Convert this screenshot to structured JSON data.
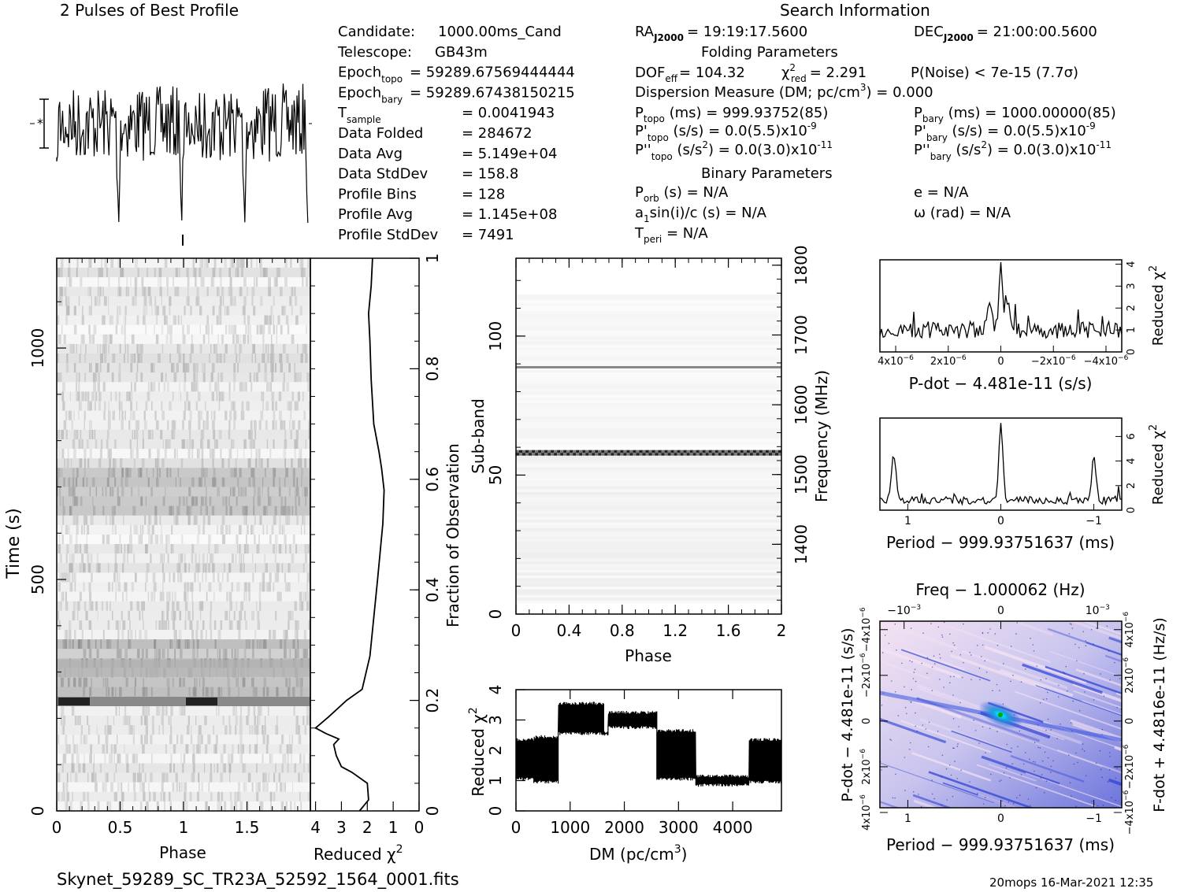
{
  "header": {
    "profile_title": "2 Pulses of Best Profile",
    "search_title": "Search Information",
    "folding_title": "Folding Parameters",
    "binary_title": "Binary Parameters",
    "filename": "Skynet_59289_SC_TR23A_52592_1564_0001.fits",
    "stamp": "20mops 16-Mar-2021 12:35"
  },
  "info_left": [
    {
      "label": "Candidate:",
      "value": "1000.00ms_Cand"
    },
    {
      "label": "Telescope:",
      "value": "GB43m"
    },
    {
      "label": "Epoch",
      "sub": "topo",
      "value": "= 59289.67569444444"
    },
    {
      "label": "Epoch",
      "sub": "bary",
      "value": "= 59289.67438150215"
    },
    {
      "label": "T",
      "sub": "sample",
      "value": "=   0.0041943"
    },
    {
      "label": "Data Folded",
      "value": "=   284672"
    },
    {
      "label": "Data Avg",
      "value": "=   5.149e+04"
    },
    {
      "label": "Data StdDev",
      "value": "=   158.8"
    },
    {
      "label": "Profile Bins",
      "value": "=   128"
    },
    {
      "label": "Profile Avg",
      "value": "=   1.145e+08"
    },
    {
      "label": "Profile StdDev",
      "value": "=   7491"
    }
  ],
  "search_info": {
    "ra": "RA",
    "ra_sub": "J2000",
    "ra_value": "= 19:19:17.5600",
    "dec": "DEC",
    "dec_sub": "J2000",
    "dec_value": "= 21:00:00.5600",
    "dof": "DOF",
    "dof_sub": "eff",
    "dof_value": "= 104.32",
    "chi": "χ",
    "chi_sup": "2",
    "chi_sub": "red",
    "chi_value": "= 2.291",
    "pnoise": "P(Noise) < 7e-15   (7.7σ)",
    "dm": "Dispersion Measure (DM; pc/cm",
    "dm_sup": "3",
    "dm_value": ") = 0.000",
    "ptopo": "P",
    "ptopo_sub": "topo",
    "ptopo_value": " (ms) =  999.93752(85)",
    "pbary": "P",
    "pbary_sub": "bary",
    "pbary_value": " (ms) =  1000.00000(85)",
    "pdtopo": "P'",
    "pdtopo_sub": "topo",
    "pdtopo_value": " (s/s) = 0.0(5.5)x10",
    "pdtopo_exp": "-9",
    "pdbary": "P'",
    "pdbary_sub": "bary",
    "pdbary_value": " (s/s) = 0.0(5.5)x10",
    "pdbary_exp": "-9",
    "pddtopo": "P''",
    "pddtopo_sub": "topo",
    "pddtopo_value": " (s/s",
    "pddtopo_sup": "2",
    "pddtopo_value2": ") = 0.0(3.0)x10",
    "pddtopo_exp": "-11",
    "pddbary": "P''",
    "pddbary_sub": "bary",
    "pddbary_value": " (s/s",
    "pddbary_sup": "2",
    "pddbary_value2": ") = 0.0(3.0)x10",
    "pddbary_exp": "-11",
    "porb": "P",
    "porb_sub": "orb",
    "porb_value": " (s) = N/A",
    "ecc": "e = N/A",
    "a1": "a",
    "a1_sub": "1",
    "a1_value": "sin(i)/c (s) = N/A",
    "omega": "ω (rad) = N/A",
    "tperi": "T",
    "tperi_sub": "peri",
    "tperi_value": " = N/A"
  },
  "chart_data": [
    {
      "type": "line",
      "id": "best_profile",
      "title": "2 Pulses of Best Profile",
      "x_range": [
        0,
        2
      ],
      "bins": 128,
      "note": "noise-like profile, dip near phase 1.0"
    },
    {
      "type": "heatmap",
      "id": "time_phase",
      "xlabel": "Phase",
      "ylabel": "Time (s)",
      "xlim": [
        0,
        2
      ],
      "ylim": [
        0,
        1194
      ],
      "x_ticks": [
        "0",
        "0.5",
        "1",
        "1.5"
      ],
      "y_ticks": [
        "0",
        "500",
        "1000"
      ],
      "right_axis_label": "Fraction of Observation",
      "right_ticks": [
        "0",
        "0.2",
        "0.4",
        "0.6",
        "0.8",
        "1"
      ]
    },
    {
      "type": "line",
      "id": "time_chi2",
      "xlabel": "Reduced χ",
      "xlabel_sup": "2",
      "x_ticks": [
        "4",
        "3",
        "2",
        "1",
        "0"
      ],
      "xlim": [
        4.2,
        0
      ],
      "ylim": [
        0,
        1
      ],
      "points": [
        [
          2.3,
          0
        ],
        [
          1.95,
          0.02
        ],
        [
          2.0,
          0.05
        ],
        [
          2.6,
          0.07
        ],
        [
          3.0,
          0.08
        ],
        [
          3.2,
          0.1
        ],
        [
          3.3,
          0.12
        ],
        [
          3.1,
          0.13
        ],
        [
          3.6,
          0.14
        ],
        [
          4.0,
          0.15
        ],
        [
          3.5,
          0.17
        ],
        [
          2.8,
          0.2
        ],
        [
          2.2,
          0.22
        ],
        [
          1.9,
          0.28
        ],
        [
          1.75,
          0.35
        ],
        [
          1.6,
          0.42
        ],
        [
          1.4,
          0.52
        ],
        [
          1.35,
          0.58
        ],
        [
          1.45,
          0.62
        ],
        [
          1.55,
          0.65
        ],
        [
          1.75,
          0.7
        ],
        [
          1.85,
          0.78
        ],
        [
          1.9,
          0.85
        ],
        [
          1.95,
          0.9
        ],
        [
          1.85,
          0.95
        ],
        [
          1.8,
          1.0
        ]
      ]
    },
    {
      "type": "heatmap",
      "id": "subband_phase",
      "xlabel": "Phase",
      "ylabel": "Sub-band",
      "xlim": [
        0,
        2
      ],
      "ylim": [
        0,
        128
      ],
      "x_ticks": [
        "0",
        "0.4",
        "0.8",
        "1.2",
        "1.6",
        "2"
      ],
      "y_ticks": [
        "0",
        "50",
        "100"
      ],
      "right_axis_label": "Frequency (MHz)",
      "right_ticks": [
        "1400",
        "1500",
        "1600",
        "1700",
        "1800"
      ]
    },
    {
      "type": "line",
      "id": "dm_chi2",
      "xlabel": "DM (pc/cm",
      "xlabel_sup": "3",
      "ylabel": "Reduced χ",
      "ylabel_sup": "2",
      "xlim": [
        0,
        4900
      ],
      "ylim": [
        0,
        4
      ],
      "x_ticks": [
        "0",
        "1000",
        "2000",
        "3000",
        "4000"
      ],
      "y_ticks": [
        "0",
        "1",
        "2",
        "3",
        "4"
      ],
      "segments": [
        {
          "x0": 0,
          "x1": 330,
          "lo": 1.0,
          "hi": 2.4
        },
        {
          "x0": 330,
          "x1": 780,
          "lo": 0.9,
          "hi": 2.5
        },
        {
          "x0": 780,
          "x1": 1620,
          "lo": 2.5,
          "hi": 3.6
        },
        {
          "x0": 1620,
          "x1": 1700,
          "lo": 2.5,
          "hi": 2.6
        },
        {
          "x0": 1700,
          "x1": 2600,
          "lo": 2.7,
          "hi": 3.3
        },
        {
          "x0": 2600,
          "x1": 3320,
          "lo": 1.0,
          "hi": 2.7
        },
        {
          "x0": 3320,
          "x1": 4300,
          "lo": 0.8,
          "hi": 1.2
        },
        {
          "x0": 4300,
          "x1": 4900,
          "lo": 0.9,
          "hi": 2.4
        }
      ]
    },
    {
      "type": "line",
      "id": "pdot_chi2",
      "xlabel": "P-dot − 4.481e-11 (s/s)",
      "ylabel": "Reduced χ",
      "ylabel_sup": "2",
      "xlim": [
        4.6e-06,
        -4.6e-06
      ],
      "ylim": [
        0,
        4.2
      ],
      "x_ticks": [
        "4x10",
        "2x10",
        "0",
        "−2x10",
        "−4x10"
      ],
      "x_tick_exp": "−6",
      "y_ticks": [
        "0",
        "1",
        "2",
        "3",
        "4"
      ],
      "peak_x": 0,
      "peak_y": 3.9,
      "baseline": 1.0
    },
    {
      "type": "line",
      "id": "period_chi2",
      "xlabel": "Period − 999.93751637 (ms)",
      "ylabel": "Reduced χ",
      "ylabel_sup": "2",
      "xlim": [
        1.3,
        -1.3
      ],
      "ylim": [
        0,
        7.5
      ],
      "x_ticks": [
        "1",
        "0",
        "−1"
      ],
      "y_ticks": [
        "0",
        "2",
        "4",
        "6"
      ],
      "peaks": [
        [
          1.15,
          4.6
        ],
        [
          0.0,
          6.9
        ],
        [
          -1.0,
          4.6
        ]
      ],
      "baseline": 0.8
    },
    {
      "type": "heatmap",
      "id": "period_pdot",
      "xlabel": "Period − 999.93751637 (ms)",
      "ylabel": "P-dot − 4.481e-11 (s/s)",
      "top_label": "Freq − 1.000062 (Hz)",
      "right_label": "F-dot + 4.4816e-11 (Hz/s)",
      "x_ticks": [
        "1",
        "0",
        "−1"
      ],
      "top_ticks": [
        "−10",
        "0",
        "10"
      ],
      "top_tick_exp": "−3",
      "left_ticks": [
        "4x10",
        "2x10",
        "0",
        "−2x10",
        "−4x10"
      ],
      "left_tick_exp": "−6",
      "right_ticks": [
        "−4x10",
        "−2x10",
        "0",
        "2x10",
        "4x10"
      ],
      "right_tick_exp": "−6",
      "peak": [
        0,
        0
      ]
    }
  ],
  "colors": {
    "ink": "#000000",
    "map_bg": "#d7d2ef",
    "map_blue": "#2c3fd6",
    "map_pink": "#f4dcef",
    "map_cyan": "#00e0ff",
    "map_green": "#00c400"
  }
}
